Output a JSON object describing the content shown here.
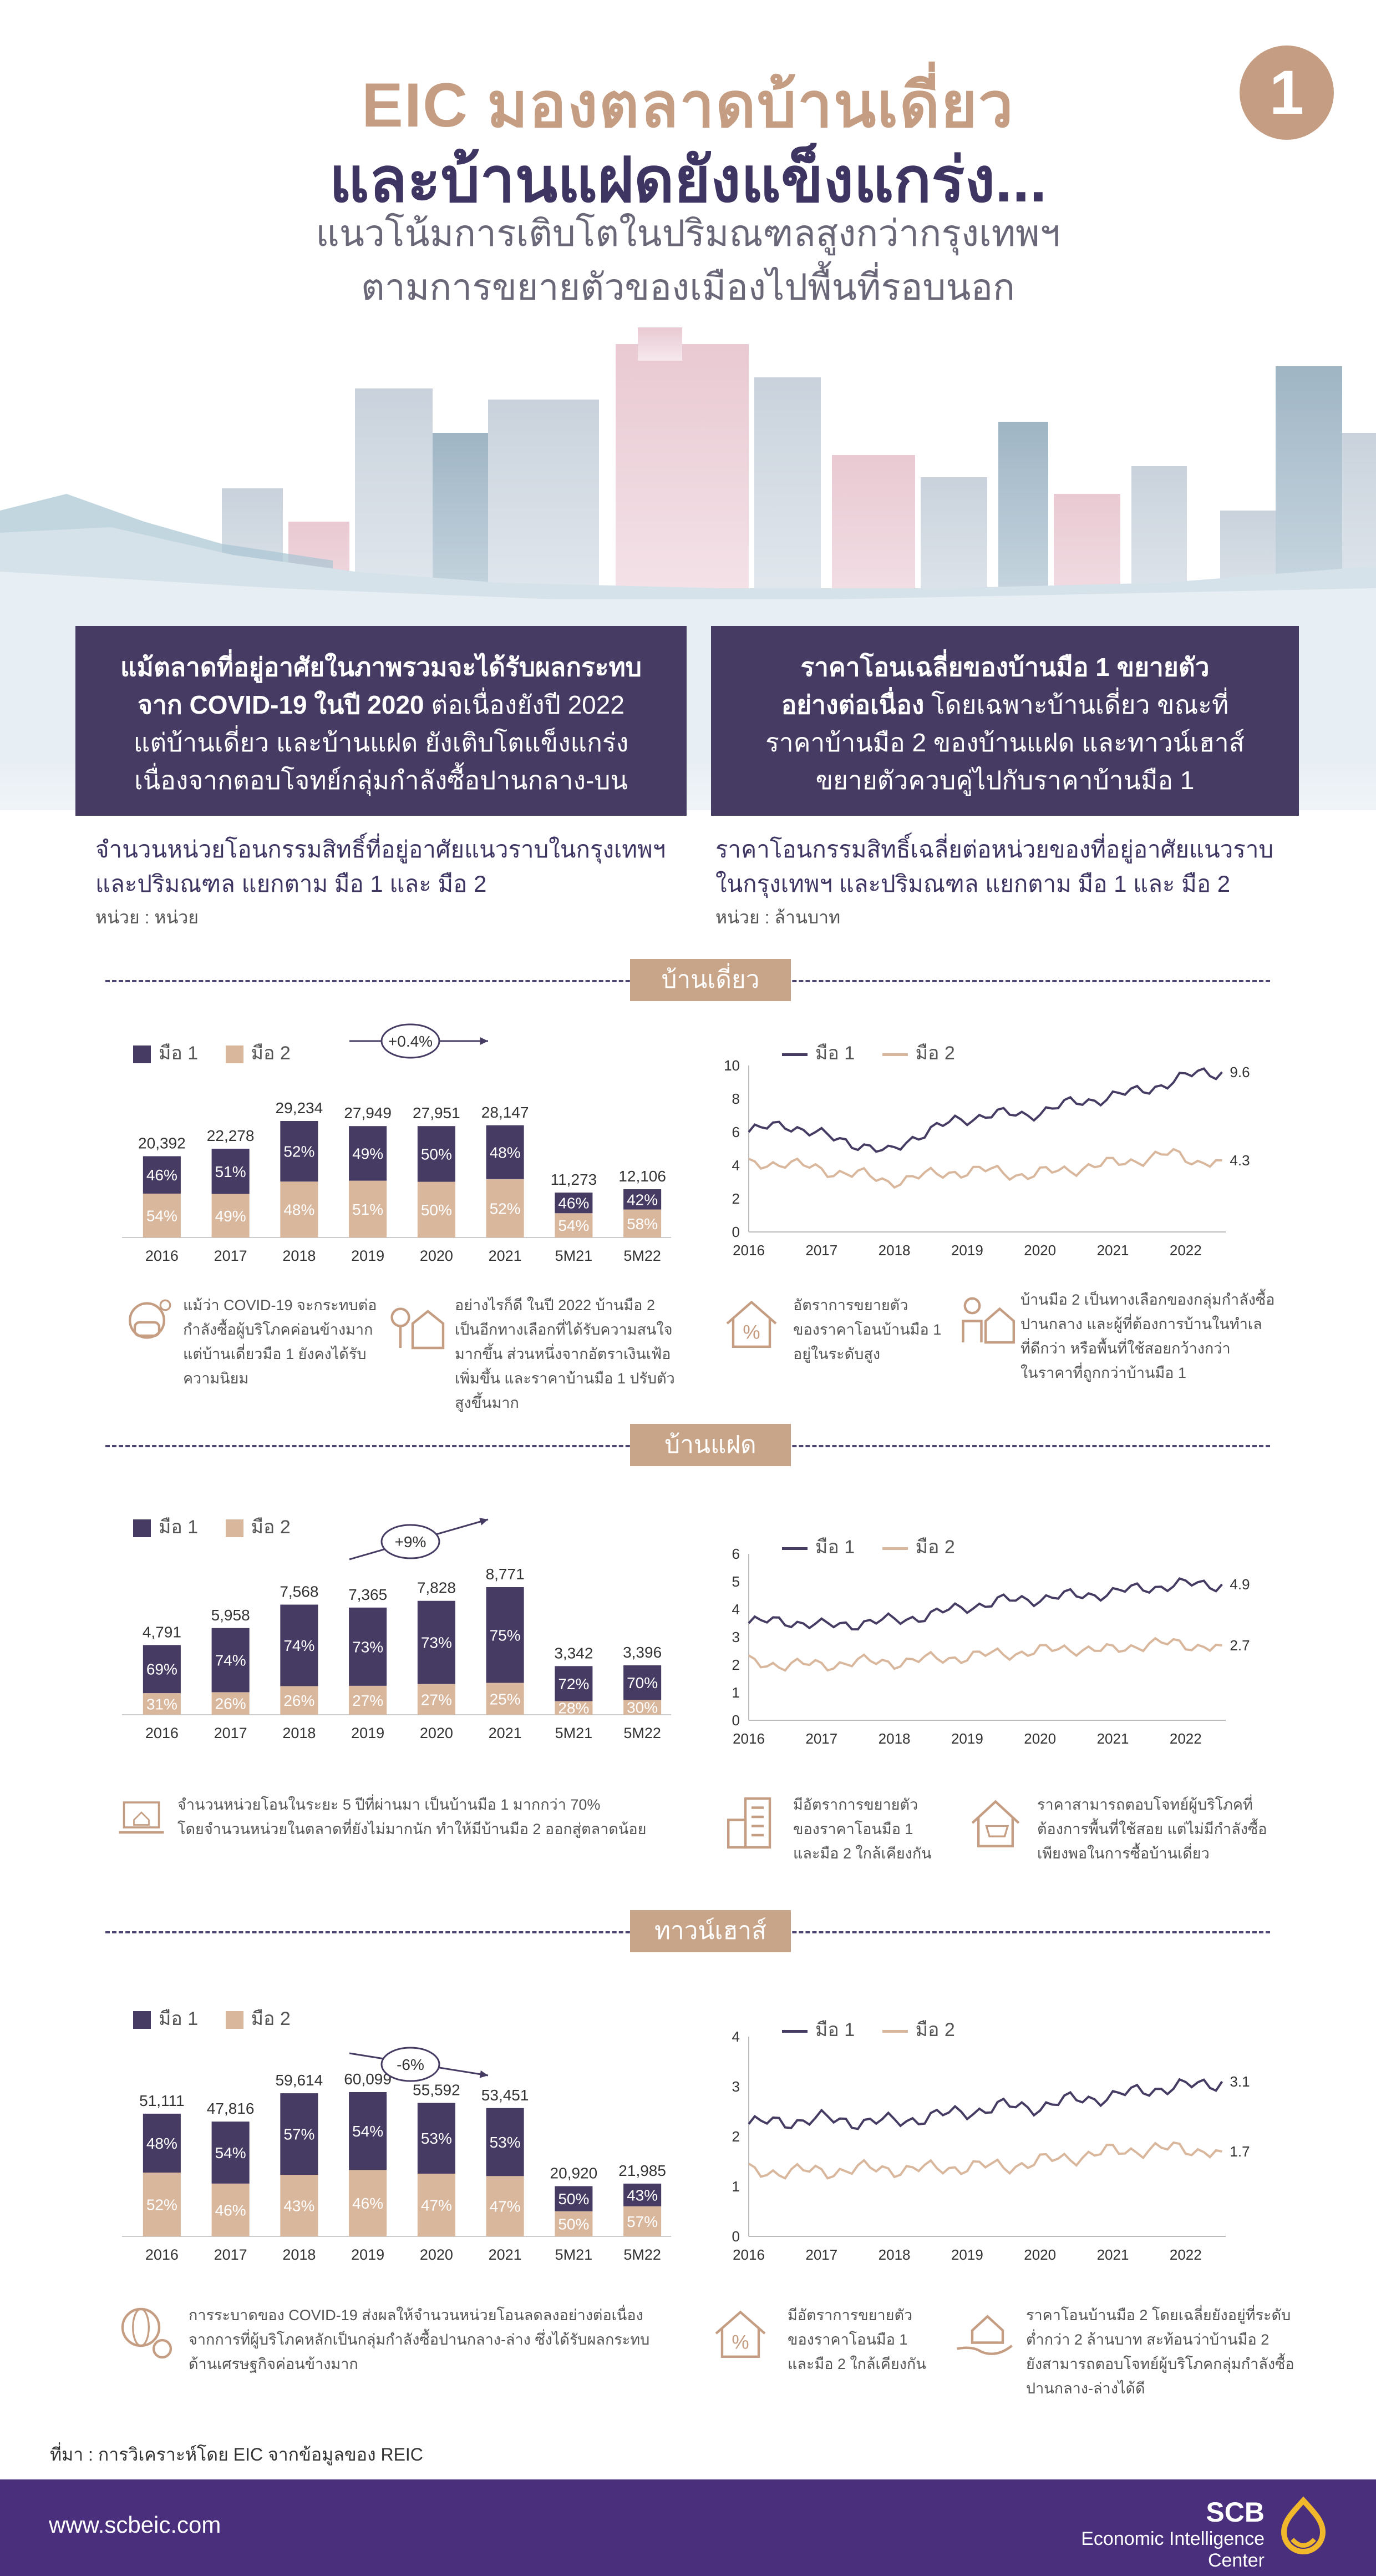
{
  "header": {
    "title_line1": "EIC มองตลาดบ้านเดี่ยว",
    "title_line2": "และบ้านแฝดยังแข็งแกร่ง...",
    "subtitle_line1": "แนวโน้มการเติบโตในปริมณฑลสูงกว่ากรุงเทพฯ",
    "subtitle_line2": "ตามการขยายตัวของเมืองไปพื้นที่รอบนอก",
    "number": "1"
  },
  "boxes": {
    "left": {
      "line1": "แม้ตลาดที่อยู่อาศัยในภาพรวมจะได้รับผลกระทบ",
      "line2_bold": "จาก COVID-19 ในปี 2020",
      "line2_rest": " ต่อเนื่องยังปี 2022",
      "line3": "แต่บ้านเดี่ยว และบ้านแฝด ยังเติบโตแข็งแกร่ง",
      "line4": "เนื่องจากตอบโจทย์กลุ่มกำลังซื้อปานกลาง-บน"
    },
    "right": {
      "line1": "ราคาโอนเฉลี่ยของบ้านมือ 1 ขยายตัว",
      "line2_bold": "อย่างต่อเนื่อง",
      "line2_rest": " โดยเฉพาะบ้านเดี่ยว ขณะที่",
      "line3": "ราคาบ้านมือ 2 ของบ้านแฝด และทาวน์เฮาส์",
      "line4": "ขยายตัวควบคู่ไปกับราคาบ้านมือ 1"
    }
  },
  "captions": {
    "left_line1": "จำนวนหน่วยโอนกรรมสิทธิ์ที่อยู่อาศัยแนวราบในกรุงเทพฯ",
    "left_line2": "และปริมณฑล แยกตาม มือ 1 และ มือ 2",
    "left_unit": "หน่วย : หน่วย",
    "right_line1": "ราคาโอนกรรมสิทธิ์เฉลี่ยต่อหน่วยของที่อยู่อาศัยแนวราบ",
    "right_line2": "ในกรุงเทพฯ และปริมณฑล แยกตาม มือ 1 และ มือ 2",
    "right_unit": "หน่วย : ล้านบาท"
  },
  "legend": {
    "hand1": "มือ 1",
    "hand2": "มือ 2"
  },
  "colors": {
    "hand1": "#463c63",
    "hand2": "#d9b79d",
    "accent": "#c59d82"
  },
  "sections": [
    {
      "title": "บ้านเดี่ยว",
      "growth": "+0.4%",
      "notes": [
        {
          "icon": "mask-virus-icon",
          "text": [
            "แม้ว่า COVID-19 จะกระทบต่อ",
            "กำลังซื้อผู้บริโภคค่อนข้างมาก",
            "แต่บ้านเดี่ยวมือ 1 ยังคงได้รับ",
            "ความนิยม"
          ]
        },
        {
          "icon": "house-tree-icon",
          "text": [
            "อย่างไรก็ดี ในปี 2022 บ้านมือ 2",
            "เป็นอีกทางเลือกที่ได้รับความสนใจ",
            "มากขึ้น ส่วนหนึ่งจากอัตราเงินเฟ้อ",
            "เพิ่มขึ้น และราคาบ้านมือ 1 ปรับตัว",
            "สูงขึ้นมาก"
          ]
        },
        {
          "icon": "house-percent-icon",
          "text": [
            "อัตราการขยายตัว",
            "ของราคาโอนบ้านมือ 1",
            "อยู่ในระดับสูง"
          ]
        },
        {
          "icon": "person-house-icon",
          "text": [
            "บ้านมือ 2 เป็นทางเลือกของกลุ่มกำลังซื้อ",
            "ปานกลาง และผู้ที่ต้องการบ้านในทำเล",
            "ที่ดีกว่า หรือพื้นที่ใช้สอยกว้างกว่า",
            "ในราคาที่ถูกกว่าบ้านมือ 1"
          ]
        }
      ]
    },
    {
      "title": "บ้านแฝด",
      "growth": "+9%",
      "notes": [
        {
          "icon": "laptop-house-icon",
          "text": [
            "จำนวนหน่วยโอนในระยะ 5 ปีที่ผ่านมา เป็นบ้านมือ 1 มากกว่า 70%",
            "โดยจำนวนหน่วยในตลาดที่ยังไม่มากนัก ทำให้มีบ้านมือ 2 ออกสู่ตลาดน้อย"
          ]
        },
        {
          "icon": "building-icon",
          "text": [
            "มีอัตราการขยายตัว",
            "ของราคาโอนมือ 1",
            "และมือ 2 ใกล้เคียงกัน"
          ]
        },
        {
          "icon": "house-cart-icon",
          "text": [
            "ราคาสามารถตอบโจทย์ผู้บริโภคที่",
            "ต้องการพื้นที่ใช้สอย แต่ไม่มีกำลังซื้อ",
            "เพียงพอในการซื้อบ้านเดี่ยว"
          ]
        }
      ]
    },
    {
      "title": "ทาวน์เฮาส์",
      "growth": "-6%",
      "notes": [
        {
          "icon": "globe-gear-icon",
          "text": [
            "การระบาดของ COVID-19 ส่งผลให้จำนวนหน่วยโอนลดลงอย่างต่อเนื่อง",
            "จากการที่ผู้บริโภคหลักเป็นกลุ่มกำลังซื้อปานกลาง-ล่าง ซึ่งได้รับผลกระทบ",
            "ด้านเศรษฐกิจค่อนข้างมาก"
          ]
        },
        {
          "icon": "house-percent-icon",
          "text": [
            "มีอัตราการขยายตัว",
            "ของราคาโอนมือ 1",
            "และมือ 2 ใกล้เคียงกัน"
          ]
        },
        {
          "icon": "hand-house-icon",
          "text": [
            "ราคาโอนบ้านมือ 2 โดยเฉลี่ยยังอยู่ที่ระดับ",
            "ต่ำกว่า 2 ล้านบาท สะท้อนว่าบ้านมือ 2",
            "ยังสามารถตอบโจทย์ผู้บริโภคกลุ่มกำลังซื้อ",
            "ปานกลาง-ล่างได้ดี"
          ]
        }
      ]
    }
  ],
  "chart_data": [
    {
      "type": "bar",
      "title": "บ้านเดี่ยว",
      "categories": [
        "2016",
        "2017",
        "2018",
        "2019",
        "2020",
        "2021",
        "5M21",
        "5M22"
      ],
      "totals": [
        20392,
        22278,
        29234,
        27949,
        27951,
        28147,
        11273,
        12106
      ],
      "total_labels": [
        "20,392",
        "22,278",
        "29,234",
        "27,949",
        "27,951",
        "28,147",
        "11,273",
        "12,106"
      ],
      "series": [
        {
          "name": "มือ 1",
          "values": [
            46,
            51,
            52,
            49,
            50,
            48,
            46,
            42
          ]
        },
        {
          "name": "มือ 2",
          "values": [
            54,
            49,
            48,
            51,
            50,
            52,
            54,
            58
          ]
        }
      ]
    },
    {
      "type": "line",
      "title": "บ้านเดี่ยว",
      "x_labels": [
        "2016",
        "2017",
        "2018",
        "2019",
        "2020",
        "2021",
        "2022"
      ],
      "ylim": [
        0,
        10
      ],
      "yticks": [
        0,
        2,
        4,
        6,
        8,
        10
      ],
      "series": [
        {
          "name": "มือ 1",
          "anchors": [
            [
              2016.0,
              6.0
            ],
            [
              2016.5,
              6.5
            ],
            [
              2017.0,
              5.8
            ],
            [
              2017.5,
              5.3
            ],
            [
              2017.9,
              4.7
            ],
            [
              2018.3,
              5.8
            ],
            [
              2018.8,
              6.6
            ],
            [
              2019.3,
              7.1
            ],
            [
              2019.8,
              7.0
            ],
            [
              2020.3,
              7.6
            ],
            [
              2020.8,
              8.0
            ],
            [
              2021.3,
              8.4
            ],
            [
              2021.8,
              9.0
            ],
            [
              2022.2,
              9.6
            ],
            [
              2022.5,
              9.6
            ]
          ],
          "end_label": "9.6"
        },
        {
          "name": "มือ 2",
          "anchors": [
            [
              2016.0,
              4.0
            ],
            [
              2016.5,
              4.2
            ],
            [
              2017.0,
              3.7
            ],
            [
              2017.5,
              3.5
            ],
            [
              2017.9,
              3.0
            ],
            [
              2018.3,
              3.3
            ],
            [
              2018.8,
              3.6
            ],
            [
              2019.3,
              3.7
            ],
            [
              2019.8,
              3.4
            ],
            [
              2020.3,
              3.7
            ],
            [
              2020.8,
              4.0
            ],
            [
              2021.3,
              4.3
            ],
            [
              2021.8,
              4.7
            ],
            [
              2022.2,
              4.2
            ],
            [
              2022.5,
              4.3
            ]
          ],
          "end_label": "4.3"
        }
      ]
    },
    {
      "type": "bar",
      "title": "บ้านแฝด",
      "categories": [
        "2016",
        "2017",
        "2018",
        "2019",
        "2020",
        "2021",
        "5M21",
        "5M22"
      ],
      "totals": [
        4791,
        5958,
        7568,
        7365,
        7828,
        8771,
        3342,
        3396
      ],
      "total_labels": [
        "4,791",
        "5,958",
        "7,568",
        "7,365",
        "7,828",
        "8,771",
        "3,342",
        "3,396"
      ],
      "series": [
        {
          "name": "มือ 1",
          "values": [
            69,
            74,
            74,
            73,
            73,
            75,
            72,
            70
          ]
        },
        {
          "name": "มือ 2",
          "values": [
            31,
            26,
            26,
            27,
            27,
            25,
            28,
            30
          ]
        }
      ]
    },
    {
      "type": "line",
      "title": "บ้านแฝด",
      "x_labels": [
        "2016",
        "2017",
        "2018",
        "2019",
        "2020",
        "2021",
        "2022"
      ],
      "ylim": [
        0,
        6
      ],
      "yticks": [
        0,
        1,
        2,
        3,
        4,
        5,
        6
      ],
      "series": [
        {
          "name": "มือ 1",
          "anchors": [
            [
              2016.0,
              3.5
            ],
            [
              2016.5,
              3.6
            ],
            [
              2017.0,
              3.4
            ],
            [
              2017.5,
              3.5
            ],
            [
              2018.0,
              3.6
            ],
            [
              2018.5,
              3.8
            ],
            [
              2019.0,
              4.1
            ],
            [
              2019.5,
              4.3
            ],
            [
              2020.0,
              4.4
            ],
            [
              2020.5,
              4.5
            ],
            [
              2021.0,
              4.6
            ],
            [
              2021.5,
              4.8
            ],
            [
              2022.0,
              4.9
            ],
            [
              2022.5,
              4.9
            ]
          ],
          "end_label": "4.9"
        },
        {
          "name": "มือ 2",
          "anchors": [
            [
              2016.0,
              2.1
            ],
            [
              2016.5,
              2.0
            ],
            [
              2017.0,
              2.0
            ],
            [
              2017.5,
              2.1
            ],
            [
              2018.0,
              2.1
            ],
            [
              2018.5,
              2.2
            ],
            [
              2019.0,
              2.3
            ],
            [
              2019.5,
              2.4
            ],
            [
              2020.0,
              2.5
            ],
            [
              2020.5,
              2.6
            ],
            [
              2021.0,
              2.5
            ],
            [
              2021.5,
              2.8
            ],
            [
              2022.0,
              2.7
            ],
            [
              2022.5,
              2.7
            ]
          ],
          "end_label": "2.7"
        }
      ]
    },
    {
      "type": "bar",
      "title": "ทาวน์เฮาส์",
      "categories": [
        "2016",
        "2017",
        "2018",
        "2019",
        "2020",
        "2021",
        "5M21",
        "5M22"
      ],
      "totals": [
        51111,
        47816,
        59614,
        60099,
        55592,
        53451,
        20920,
        21985
      ],
      "total_labels": [
        "51,111",
        "47,816",
        "59,614",
        "60,099",
        "55,592",
        "53,451",
        "20,920",
        "21,985"
      ],
      "series": [
        {
          "name": "มือ 1",
          "values": [
            48,
            54,
            57,
            54,
            53,
            53,
            50,
            43
          ]
        },
        {
          "name": "มือ 2",
          "values": [
            52,
            46,
            43,
            46,
            47,
            47,
            50,
            57
          ]
        }
      ]
    },
    {
      "type": "line",
      "title": "ทาวน์เฮาส์",
      "x_labels": [
        "2016",
        "2017",
        "2018",
        "2019",
        "2020",
        "2021",
        "2022"
      ],
      "ylim": [
        0,
        4
      ],
      "yticks": [
        0,
        1,
        2,
        3,
        4
      ],
      "series": [
        {
          "name": "มือ 1",
          "anchors": [
            [
              2016.0,
              2.25
            ],
            [
              2016.5,
              2.3
            ],
            [
              2017.0,
              2.35
            ],
            [
              2017.5,
              2.3
            ],
            [
              2018.0,
              2.3
            ],
            [
              2018.5,
              2.4
            ],
            [
              2019.0,
              2.5
            ],
            [
              2019.5,
              2.6
            ],
            [
              2020.0,
              2.6
            ],
            [
              2020.5,
              2.75
            ],
            [
              2021.0,
              2.8
            ],
            [
              2021.5,
              2.95
            ],
            [
              2022.0,
              3.0
            ],
            [
              2022.5,
              3.1
            ]
          ],
          "end_label": "3.1"
        },
        {
          "name": "มือ 2",
          "anchors": [
            [
              2016.0,
              1.3
            ],
            [
              2016.5,
              1.3
            ],
            [
              2017.0,
              1.3
            ],
            [
              2017.5,
              1.35
            ],
            [
              2018.0,
              1.35
            ],
            [
              2018.5,
              1.35
            ],
            [
              2019.0,
              1.4
            ],
            [
              2019.5,
              1.4
            ],
            [
              2020.0,
              1.5
            ],
            [
              2020.5,
              1.6
            ],
            [
              2021.0,
              1.7
            ],
            [
              2021.5,
              1.75
            ],
            [
              2022.0,
              1.75
            ],
            [
              2022.5,
              1.7
            ]
          ],
          "end_label": "1.7"
        }
      ]
    }
  ],
  "source": "ที่มา : การวิเคราะห์โดย EIC จากข้อมูลของ REIC",
  "footer": {
    "url": "www.scbeic.com",
    "brand": "SCB",
    "brand_sub": "Economic Intelligence Center"
  }
}
